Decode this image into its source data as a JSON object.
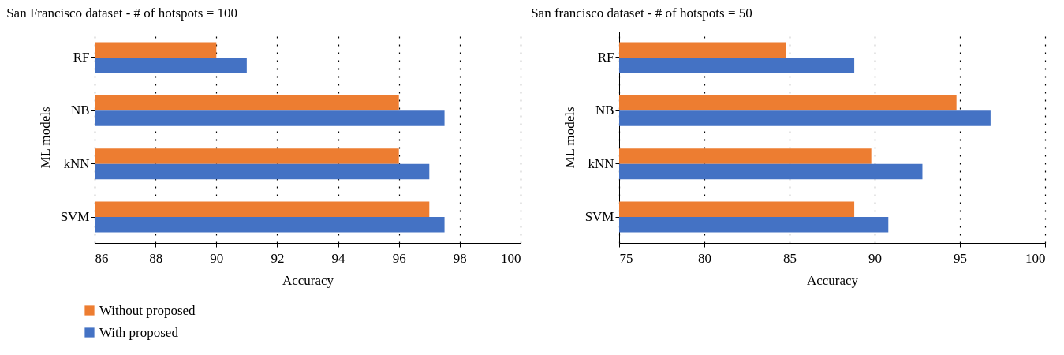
{
  "chart_data": [
    {
      "type": "bar",
      "orientation": "horizontal",
      "title": "San Francisco dataset - # of hotspots = 100",
      "xlabel": "Accuracy",
      "ylabel": "ML models",
      "categories": [
        "RF",
        "NB",
        "kNN",
        "SVM"
      ],
      "series": [
        {
          "name": "Without proposed",
          "color": "#ed7d31",
          "values": [
            90,
            96,
            96,
            97
          ]
        },
        {
          "name": "With proposed",
          "color": "#4472c4",
          "values": [
            91,
            97.5,
            97,
            97.5
          ]
        }
      ],
      "xlim": [
        86,
        100
      ],
      "xticks": [
        86,
        88,
        90,
        92,
        94,
        96,
        98,
        100
      ],
      "grid": "x",
      "legend": "bottom left"
    },
    {
      "type": "bar",
      "orientation": "horizontal",
      "title": "San francisco dataset - # of hotspots = 50",
      "xlabel": "Accuracy",
      "ylabel": "ML models",
      "categories": [
        "RF",
        "NB",
        "kNN",
        "SVM"
      ],
      "series": [
        {
          "color": "#ed7d31",
          "values": [
            84.8,
            94.8,
            89.8,
            88.8
          ]
        },
        {
          "color": "#4472c4",
          "values": [
            88.8,
            96.8,
            92.8,
            90.8
          ]
        }
      ],
      "xlim": [
        75,
        100
      ],
      "xticks": [
        75,
        80,
        85,
        90,
        95,
        100
      ],
      "grid": "x"
    }
  ]
}
